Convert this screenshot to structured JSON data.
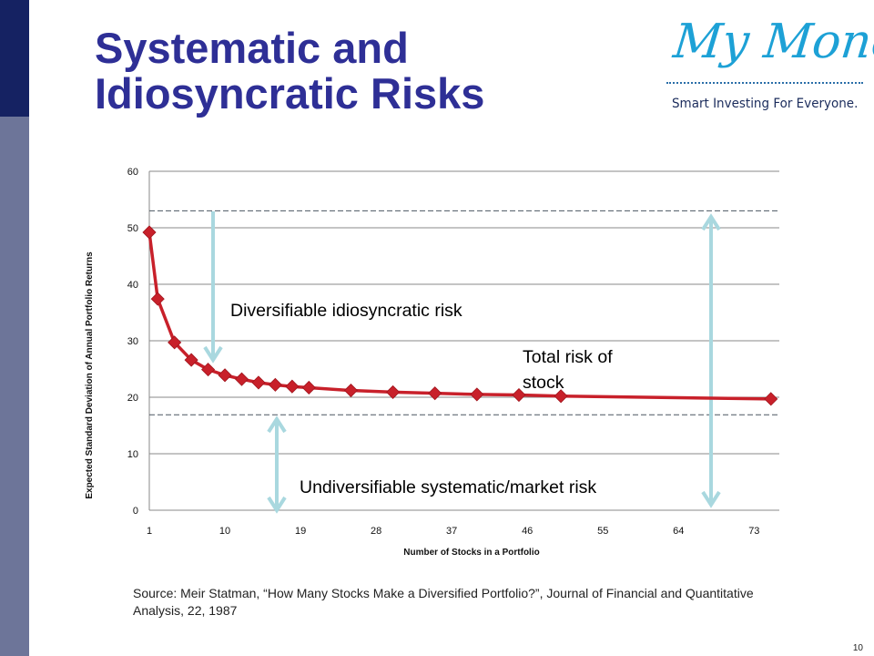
{
  "slide": {
    "title": "Systematic and\nIdiosyncratic Risks",
    "page_number": "10",
    "source": "Source: Meir Statman, “How Many Stocks Make a Diversified Portfolio?”, Journal of Financial and Quantitative Analysis, 22, 1987",
    "colors": {
      "title": "#2e2f96",
      "sidebar_dark": "#152262",
      "sidebar_light": "#6d7599"
    }
  },
  "logo": {
    "name": "My Money",
    "tagline": "Smart Investing For Everyone.",
    "color": "#1da1d6"
  },
  "chart_data": {
    "type": "line",
    "title": "",
    "xlabel": "Number of Stocks in a Portfolio",
    "ylabel": "Expected Standard Deviation of Annual Portfolio Returns",
    "xlim": [
      1,
      76
    ],
    "ylim": [
      0,
      60
    ],
    "xticks": [
      1,
      10,
      19,
      28,
      37,
      46,
      55,
      64,
      73
    ],
    "yticks": [
      0,
      10,
      20,
      30,
      40,
      50,
      60
    ],
    "grid": true,
    "series": [
      {
        "color": "#c8202a",
        "points": [
          [
            1,
            49.2
          ],
          [
            2,
            37.4
          ],
          [
            4,
            29.7
          ],
          [
            6,
            26.6
          ],
          [
            8,
            24.9
          ],
          [
            10,
            23.9
          ],
          [
            12,
            23.2
          ],
          [
            14,
            22.6
          ],
          [
            16,
            22.2
          ],
          [
            18,
            21.9
          ],
          [
            20,
            21.7
          ],
          [
            25,
            21.2
          ],
          [
            30,
            20.9
          ],
          [
            35,
            20.7
          ],
          [
            40,
            20.5
          ],
          [
            45,
            20.4
          ],
          [
            50,
            20.2
          ],
          [
            75,
            19.7
          ]
        ]
      }
    ],
    "reference_lines": [
      53,
      16.9
    ],
    "annotations": {
      "diversifiable": "Diversifiable idiosyncratic risk",
      "undiversifiable": "Undiversifiable systematic/market risk",
      "total": "Total risk of\nstock"
    },
    "arrow_color": "#a9d8df"
  }
}
